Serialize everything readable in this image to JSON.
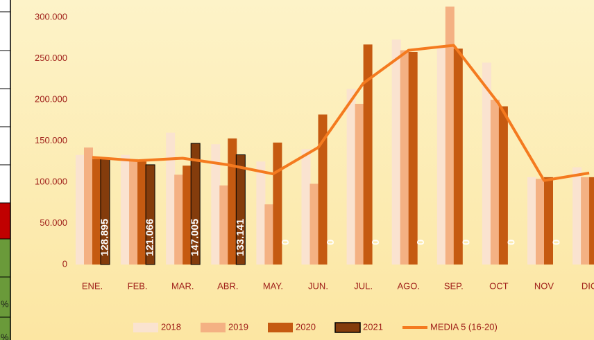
{
  "chart_data": {
    "type": "bar",
    "categories": [
      "ENE.",
      "FEB.",
      "MAR.",
      "ABR.",
      "MAY.",
      "JUN.",
      "JUL.",
      "AGO.",
      "SEP.",
      "OCT",
      "NOV",
      "DIC"
    ],
    "series": [
      {
        "name": "2018",
        "color": "#fae3d0",
        "values": [
          133000,
          133000,
          160000,
          146000,
          125000,
          140000,
          213000,
          273000,
          265000,
          245000,
          106000,
          118000
        ]
      },
      {
        "name": "2019",
        "color": "#f4b183",
        "values": [
          142000,
          128000,
          109000,
          96000,
          73000,
          98000,
          195000,
          260000,
          313000,
          200000,
          104000,
          106000
        ]
      },
      {
        "name": "2020",
        "color": "#c55a11",
        "values": [
          128000,
          125000,
          120000,
          153000,
          148000,
          182000,
          267000,
          258000,
          262000,
          192000,
          106000,
          106000
        ]
      },
      {
        "name": "2021",
        "color": "#843c0c",
        "border": "#000000",
        "values": [
          128895,
          121066,
          147005,
          133141,
          0,
          0,
          0,
          0,
          0,
          0,
          0,
          null
        ],
        "value_labels": [
          "128.895",
          "121.066",
          "147.005",
          "133.141",
          "0",
          "0",
          "0",
          "0",
          "0",
          "0",
          "0",
          null
        ]
      },
      {
        "name": "MEDIA 5 (16-20)",
        "type": "line",
        "color": "#f47a1f",
        "values": [
          130000,
          126000,
          129000,
          121000,
          110000,
          142000,
          220000,
          260000,
          266000,
          195000,
          102000,
          111000
        ]
      }
    ],
    "ylim": [
      0,
      300000
    ],
    "yticks": [
      0,
      {
        "value": 50000,
        "label": "50.000"
      },
      {
        "value": 100000,
        "label": "100.000"
      },
      {
        "value": 150000,
        "label": "150.000"
      },
      {
        "value": 200000,
        "label": "200.000"
      },
      {
        "value": 250000,
        "label": "250.000"
      },
      {
        "value": 300000,
        "label": "300.000"
      }
    ],
    "grid": false,
    "legend": "bottom"
  },
  "side_table": {
    "cells": [
      "%",
      "%"
    ]
  }
}
